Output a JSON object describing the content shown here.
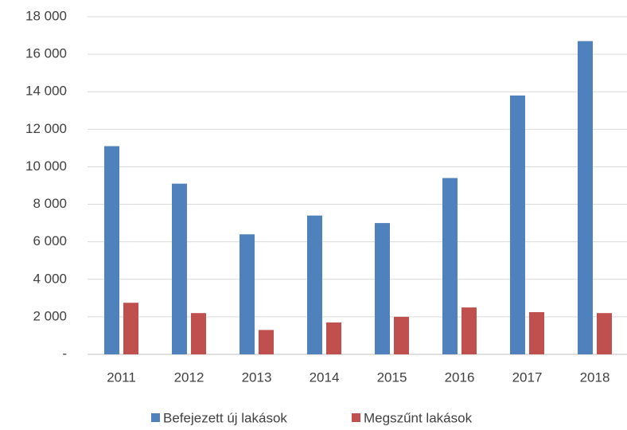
{
  "chart_data": {
    "type": "bar",
    "categories": [
      "2011",
      "2012",
      "2013",
      "2014",
      "2015",
      "2016",
      "2017",
      "2018"
    ],
    "series": [
      {
        "name": "Befejezett új lakások",
        "color": "#4f81bd",
        "values": [
          11100,
          9100,
          6400,
          7400,
          7000,
          9400,
          13800,
          16700
        ]
      },
      {
        "name": "Megszűnt lakások",
        "color": "#c0504d",
        "values": [
          2750,
          2200,
          1300,
          1700,
          2000,
          2500,
          2250,
          2200
        ]
      }
    ],
    "ylim": [
      0,
      18000
    ],
    "yticks": [
      {
        "value": 0,
        "label": "-"
      },
      {
        "value": 2000,
        "label": "2 000"
      },
      {
        "value": 4000,
        "label": "4 000"
      },
      {
        "value": 6000,
        "label": "6 000"
      },
      {
        "value": 8000,
        "label": "8 000"
      },
      {
        "value": 10000,
        "label": "10 000"
      },
      {
        "value": 12000,
        "label": "12 000"
      },
      {
        "value": 14000,
        "label": "14 000"
      },
      {
        "value": 16000,
        "label": "16 000"
      },
      {
        "value": 18000,
        "label": "18 000"
      }
    ],
    "grid": true,
    "legend": "bottom"
  }
}
